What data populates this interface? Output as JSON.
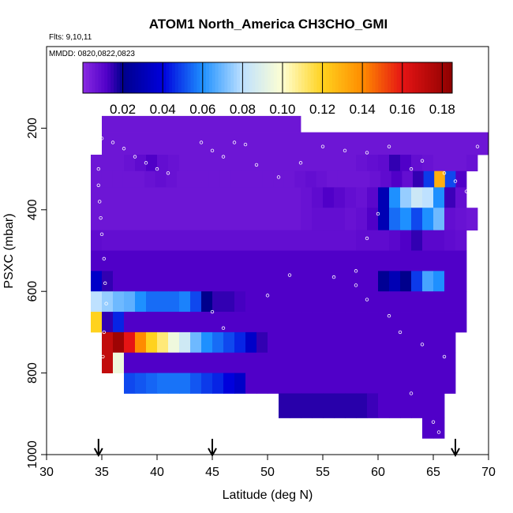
{
  "chart_data": {
    "type": "heatmap",
    "title": "ATOM1 North_America CH3CHO_GMI",
    "subtitle_flights": "Flts: 9,10,11",
    "subtitle_dates": "MMDD: 0820,0822,0823",
    "xlabel": "Latitude (deg N)",
    "ylabel": "PSXC (mbar)",
    "xlim": [
      30,
      70
    ],
    "ylim": [
      1000,
      0
    ],
    "x_ticks": [
      30,
      35,
      40,
      45,
      50,
      55,
      60,
      65,
      70
    ],
    "y_ticks": [
      200,
      400,
      600,
      800,
      1000
    ],
    "colorbar": {
      "min": 0.0,
      "max": 0.185,
      "ticks": [
        0.02,
        0.04,
        0.06,
        0.08,
        0.1,
        0.12,
        0.14,
        0.16,
        0.18
      ],
      "tick_labels": [
        "0.02",
        "0.04",
        "0.06",
        "0.08",
        "0.10",
        "0.12",
        "0.14",
        "0.16",
        "0.18"
      ]
    },
    "arrows_latitude": [
      34.7,
      45,
      67
    ],
    "grid": false,
    "pressure_bin_rows": [
      {
        "p_top": 170,
        "p_bot": 210,
        "lat_start": 35,
        "lat_end": 53,
        "values": [
          0.006
        ]
      },
      {
        "p_top": 210,
        "p_bot": 265,
        "lat_start": 35,
        "lat_end": 70,
        "values": [
          0.006
        ]
      },
      {
        "p_top": 265,
        "p_bot": 305,
        "lat_start": 34,
        "lat_end": 69,
        "values": [
          0.006,
          0.006,
          0.006,
          0.007,
          0.009,
          0.012,
          0.008,
          0.007,
          0.006,
          0.006,
          0.006,
          0.006,
          0.006,
          0.006,
          0.006,
          0.006,
          0.006,
          0.006,
          0.006,
          0.006,
          0.006,
          0.006,
          0.006,
          0.006,
          0.007,
          0.008,
          0.009,
          0.015,
          0.012,
          0.008,
          0.007,
          0.006,
          0.006,
          0.006,
          0.007
        ]
      },
      {
        "p_top": 305,
        "p_bot": 345,
        "lat_start": 34,
        "lat_end": 68,
        "values": [
          0.006,
          0.006,
          0.006,
          0.006,
          0.006,
          0.007,
          0.008,
          0.007,
          0.006,
          0.006,
          0.006,
          0.006,
          0.006,
          0.006,
          0.006,
          0.006,
          0.006,
          0.006,
          0.006,
          0.007,
          0.008,
          0.007,
          0.006,
          0.006,
          0.006,
          0.006,
          0.007,
          0.009,
          0.012,
          0.008,
          0.015,
          0.048,
          0.13,
          0.05,
          0.012
        ]
      },
      {
        "p_top": 345,
        "p_bot": 395,
        "lat_start": 34,
        "lat_end": 68,
        "values": [
          0.006,
          0.006,
          0.006,
          0.006,
          0.006,
          0.006,
          0.006,
          0.006,
          0.006,
          0.006,
          0.006,
          0.006,
          0.006,
          0.006,
          0.006,
          0.006,
          0.006,
          0.006,
          0.006,
          0.007,
          0.009,
          0.012,
          0.01,
          0.008,
          0.007,
          0.01,
          0.03,
          0.06,
          0.075,
          0.084,
          0.08,
          0.06,
          0.014,
          0.008
        ]
      },
      {
        "p_top": 395,
        "p_bot": 450,
        "lat_start": 34,
        "lat_end": 69,
        "values": [
          0.006,
          0.006,
          0.006,
          0.006,
          0.006,
          0.006,
          0.006,
          0.006,
          0.006,
          0.006,
          0.006,
          0.006,
          0.006,
          0.006,
          0.006,
          0.006,
          0.006,
          0.006,
          0.006,
          0.007,
          0.008,
          0.008,
          0.008,
          0.007,
          0.008,
          0.012,
          0.03,
          0.055,
          0.06,
          0.05,
          0.06,
          0.07,
          0.008,
          0.007,
          0.006
        ]
      },
      {
        "p_top": 450,
        "p_bot": 500,
        "lat_start": 34,
        "lat_end": 68,
        "values": [
          0.009,
          0.008,
          0.008,
          0.008,
          0.008,
          0.008,
          0.008,
          0.008,
          0.008,
          0.008,
          0.008,
          0.008,
          0.008,
          0.008,
          0.008,
          0.008,
          0.008,
          0.008,
          0.008,
          0.008,
          0.008,
          0.008,
          0.008,
          0.008,
          0.009,
          0.009,
          0.009,
          0.01,
          0.012,
          0.015,
          0.01,
          0.01,
          0.009,
          0.008
        ]
      },
      {
        "p_top": 500,
        "p_bot": 550,
        "lat_start": 34,
        "lat_end": 68,
        "values": [
          0.012,
          0.012,
          0.012,
          0.012,
          0.012,
          0.012,
          0.012,
          0.012,
          0.012,
          0.012,
          0.012,
          0.012,
          0.012,
          0.012,
          0.012,
          0.012,
          0.012,
          0.012,
          0.012,
          0.012,
          0.012,
          0.012,
          0.012,
          0.012,
          0.012,
          0.012,
          0.012,
          0.012,
          0.012,
          0.012,
          0.012,
          0.012,
          0.012,
          0.012
        ]
      },
      {
        "p_top": 550,
        "p_bot": 600,
        "lat_start": 34,
        "lat_end": 68,
        "values": [
          0.035,
          0.015,
          0.012,
          0.012,
          0.012,
          0.012,
          0.012,
          0.012,
          0.012,
          0.012,
          0.012,
          0.012,
          0.012,
          0.012,
          0.012,
          0.012,
          0.012,
          0.012,
          0.012,
          0.012,
          0.012,
          0.012,
          0.012,
          0.012,
          0.012,
          0.012,
          0.022,
          0.03,
          0.02,
          0.048,
          0.065,
          0.06,
          0.012,
          0.012
        ]
      },
      {
        "p_top": 600,
        "p_bot": 650,
        "lat_start": 34,
        "lat_end": 68,
        "values": [
          0.08,
          0.075,
          0.07,
          0.068,
          0.06,
          0.055,
          0.055,
          0.055,
          0.058,
          0.05,
          0.02,
          0.015,
          0.015,
          0.013,
          0.012,
          0.012,
          0.012,
          0.012,
          0.012,
          0.012,
          0.012,
          0.012,
          0.012,
          0.012,
          0.012,
          0.012,
          0.012,
          0.012,
          0.012,
          0.012,
          0.012,
          0.012,
          0.012,
          0.012
        ]
      },
      {
        "p_top": 650,
        "p_bot": 700,
        "lat_start": 34,
        "lat_end": 68,
        "values": [
          0.12,
          0.015,
          0.045,
          0.012,
          0.012,
          0.012,
          0.012,
          0.012,
          0.012,
          0.012,
          0.012,
          0.012,
          0.012,
          0.012,
          0.012,
          0.012,
          0.012,
          0.012,
          0.012,
          0.012,
          0.012,
          0.012,
          0.012,
          0.012,
          0.012,
          0.012,
          0.012,
          0.012,
          0.012,
          0.012,
          0.012,
          0.012,
          0.012,
          0.012
        ]
      },
      {
        "p_top": 700,
        "p_bot": 750,
        "lat_start": 35,
        "lat_end": 67,
        "values": [
          0.17,
          0.18,
          0.16,
          0.14,
          0.12,
          0.11,
          0.095,
          0.085,
          0.07,
          0.06,
          0.055,
          0.05,
          0.045,
          0.035,
          0.015,
          0.012,
          0.012,
          0.012,
          0.012,
          0.012,
          0.012,
          0.012,
          0.012,
          0.012,
          0.012,
          0.012,
          0.012,
          0.012,
          0.012,
          0.012,
          0.012,
          0.012
        ]
      },
      {
        "p_top": 750,
        "p_bot": 800,
        "lat_start": 35,
        "lat_end": 67,
        "values": [
          0.17,
          0.095,
          0.012,
          0.012,
          0.012,
          0.012,
          0.012,
          0.012,
          0.012,
          0.012,
          0.012,
          0.012,
          0.012,
          0.012,
          0.012,
          0.012,
          0.012,
          0.012,
          0.012,
          0.012,
          0.012,
          0.012,
          0.012,
          0.012,
          0.012,
          0.012,
          0.012,
          0.012,
          0.012,
          0.012,
          0.012,
          0.012
        ]
      },
      {
        "p_top": 800,
        "p_bot": 850,
        "lat_start": 37,
        "lat_end": 67,
        "values": [
          0.05,
          0.052,
          0.054,
          0.056,
          0.056,
          0.056,
          0.052,
          0.048,
          0.045,
          0.04,
          0.035,
          0.012,
          0.012,
          0.012,
          0.012,
          0.012,
          0.012,
          0.012,
          0.012,
          0.012,
          0.012,
          0.012,
          0.012,
          0.012,
          0.012,
          0.012,
          0.012,
          0.012,
          0.012,
          0.012
        ]
      },
      {
        "p_top": 850,
        "p_bot": 910,
        "lat_start": 51,
        "lat_end": 66,
        "values": [
          0.016,
          0.016,
          0.016,
          0.016,
          0.016,
          0.016,
          0.016,
          0.016,
          0.014,
          0.012,
          0.012,
          0.012,
          0.012,
          0.012,
          0.012
        ]
      },
      {
        "p_top": 910,
        "p_bot": 960,
        "lat_start": 64,
        "lat_end": 66,
        "values": [
          0.012,
          0.012
        ]
      }
    ]
  }
}
